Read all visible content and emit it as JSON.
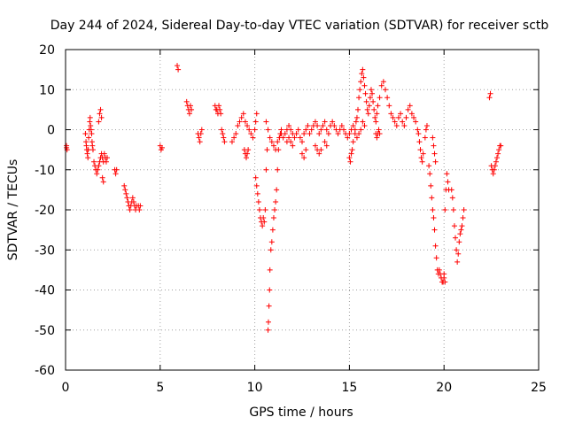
{
  "chart_data": {
    "type": "scatter",
    "title": "Day 244 of 2024, Sidereal Day-to-day VTEC variation (SDTVAR) for receiver sctb",
    "xlabel": "GPS time / hours",
    "ylabel": "SDTVAR / TECUs",
    "xlim": [
      0,
      25
    ],
    "ylim": [
      -60,
      20
    ],
    "grid": true,
    "marker": "plus",
    "color": "#ff0000",
    "x_ticks": [
      {
        "value": 0,
        "label": "0"
      },
      {
        "value": 5,
        "label": "5"
      },
      {
        "value": 10,
        "label": "10"
      },
      {
        "value": 15,
        "label": "15"
      },
      {
        "value": 20,
        "label": "20"
      },
      {
        "value": 25,
        "label": "25"
      }
    ],
    "y_ticks": [
      {
        "value": -60,
        "label": "-60"
      },
      {
        "value": -50,
        "label": "-50"
      },
      {
        "value": -40,
        "label": "-40"
      },
      {
        "value": -30,
        "label": "-30"
      },
      {
        "value": -20,
        "label": "-20"
      },
      {
        "value": -10,
        "label": "-10"
      },
      {
        "value": 0,
        "label": "0"
      },
      {
        "value": 10,
        "label": "10"
      },
      {
        "value": 20,
        "label": "20"
      }
    ],
    "series": [
      {
        "name": "SDTVAR",
        "x": [
          0.05,
          0.05,
          0.08,
          1.05,
          1.08,
          1.1,
          1.12,
          1.15,
          1.18,
          1.2,
          1.22,
          1.25,
          1.28,
          1.3,
          1.32,
          1.35,
          1.38,
          1.4,
          1.42,
          1.45,
          1.5,
          1.55,
          1.6,
          1.65,
          1.7,
          1.75,
          1.8,
          1.85,
          1.9,
          1.95,
          2.0,
          2.05,
          2.1,
          2.15,
          2.2,
          1.75,
          1.8,
          1.85,
          1.9,
          1.95,
          2.0,
          2.6,
          2.65,
          2.7,
          3.1,
          3.15,
          3.2,
          3.25,
          3.3,
          3.35,
          3.4,
          3.45,
          3.5,
          3.55,
          3.6,
          3.65,
          3.7,
          3.75,
          3.85,
          3.9,
          3.95,
          5.0,
          5.05,
          5.1,
          5.9,
          5.95,
          6.4,
          6.45,
          6.5,
          6.55,
          6.6,
          6.65,
          7.0,
          7.05,
          7.1,
          7.15,
          7.2,
          7.9,
          7.95,
          8.0,
          8.05,
          8.1,
          8.15,
          8.2,
          8.25,
          8.3,
          8.35,
          8.4,
          8.8,
          8.9,
          9.0,
          9.1,
          9.2,
          9.3,
          9.4,
          9.5,
          9.6,
          9.7,
          9.8,
          9.9,
          10.0,
          10.05,
          10.1,
          9.45,
          9.5,
          9.55,
          9.6,
          9.65,
          10.05,
          10.1,
          10.15,
          10.2,
          10.25,
          10.3,
          10.35,
          10.4,
          10.45,
          10.5,
          10.55,
          10.6,
          10.65,
          10.7,
          10.72,
          10.75,
          10.78,
          10.8,
          10.85,
          10.9,
          10.95,
          11.0,
          11.05,
          11.1,
          11.15,
          11.2,
          11.25,
          11.3,
          11.35,
          11.4,
          10.6,
          10.7,
          10.8,
          10.9,
          11.0,
          11.1,
          11.2,
          11.3,
          11.4,
          11.5,
          11.6,
          11.7,
          11.8,
          11.9,
          12.0,
          12.1,
          12.2,
          12.3,
          12.4,
          12.5,
          12.6,
          12.7,
          12.8,
          12.9,
          13.0,
          13.1,
          13.2,
          13.3,
          13.4,
          13.5,
          13.6,
          13.7,
          13.8,
          13.9,
          14.0,
          14.1,
          14.2,
          14.3,
          14.4,
          14.5,
          14.6,
          14.7,
          14.8,
          14.9,
          15.0,
          15.1,
          15.2,
          15.3,
          15.4,
          15.5,
          15.6,
          15.7,
          15.8,
          11.7,
          11.8,
          11.9,
          12.0,
          12.5,
          12.6,
          12.7,
          13.2,
          13.3,
          13.4,
          13.5,
          13.7,
          13.8,
          15.0,
          15.05,
          15.1,
          15.15,
          15.2,
          15.3,
          15.35,
          15.4,
          15.45,
          15.5,
          15.55,
          15.6,
          15.65,
          15.7,
          15.75,
          15.8,
          15.85,
          15.9,
          15.95,
          16.0,
          16.05,
          16.1,
          16.15,
          16.2,
          16.25,
          16.3,
          16.35,
          16.4,
          16.45,
          16.5,
          16.6,
          16.7,
          16.8,
          16.9,
          17.0,
          17.1,
          17.2,
          17.3,
          17.4,
          17.5,
          17.6,
          17.7,
          17.8,
          17.9,
          18.0,
          18.1,
          18.2,
          18.3,
          18.4,
          18.5,
          16.4,
          16.45,
          16.5,
          16.55,
          16.6,
          18.6,
          18.65,
          18.7,
          18.75,
          18.8,
          18.85,
          18.9,
          19.0,
          19.05,
          19.1,
          19.2,
          19.25,
          19.3,
          19.35,
          19.4,
          19.45,
          19.5,
          19.55,
          19.6,
          19.65,
          19.7,
          19.4,
          19.45,
          19.5,
          19.55,
          19.75,
          19.8,
          19.85,
          19.9,
          19.95,
          20.0,
          20.05,
          20.1,
          20.15,
          20.2,
          20.25,
          20.0,
          20.05,
          20.4,
          20.45,
          20.5,
          20.55,
          20.6,
          20.65,
          20.7,
          20.75,
          20.8,
          20.85,
          20.9,
          20.95,
          21.0,
          21.05,
          22.4,
          22.45,
          22.5,
          22.55,
          22.6,
          22.65,
          22.7,
          22.75,
          22.8,
          22.85,
          22.9,
          22.95,
          23.0
        ],
        "y": [
          -4,
          -4.5,
          -5,
          -1,
          -3,
          -4,
          -5,
          -6,
          -7,
          -5,
          -2,
          0,
          2,
          3,
          1,
          0,
          -1,
          -3,
          -4,
          -5,
          -8,
          -9,
          -10,
          -11,
          -10,
          -9,
          -8,
          -7,
          -6,
          -7,
          -8,
          -6,
          -7,
          -8,
          -7,
          2,
          4,
          5,
          3,
          -12,
          -13,
          -10,
          -11,
          -10,
          -14,
          -15,
          -16,
          -17,
          -18,
          -19,
          -20,
          -19,
          -18,
          -17,
          -18,
          -19,
          -20,
          -19,
          -19,
          -20,
          -19,
          -4,
          -5,
          -4.5,
          16,
          15,
          7,
          6,
          5,
          4,
          6,
          5,
          -1,
          -2,
          -3,
          -1,
          0,
          6,
          5,
          5,
          4,
          6,
          5,
          4,
          0,
          -1,
          -2,
          -3,
          -3,
          -2,
          -1,
          1,
          2,
          3,
          4,
          2,
          1,
          0,
          -1,
          -2,
          0,
          2,
          4,
          -5,
          -6,
          -7,
          -6,
          -5,
          -12,
          -14,
          -16,
          -18,
          -20,
          -22,
          -23,
          -24,
          -22,
          -23,
          -20,
          -10,
          -5,
          -50,
          -48,
          -44,
          -40,
          -35,
          -30,
          -28,
          -25,
          -22,
          -20,
          -18,
          -15,
          -10,
          -5,
          -2,
          -1,
          0,
          2,
          0,
          -2,
          -3,
          -4,
          -5,
          -3,
          -2,
          -1,
          -2,
          -1,
          0,
          1,
          0,
          -1,
          -2,
          -1,
          0,
          -2,
          -3,
          -1,
          0,
          1,
          -1,
          0,
          1,
          2,
          1,
          -1,
          0,
          1,
          2,
          0,
          -1,
          1,
          2,
          1,
          0,
          -1,
          0,
          1,
          0,
          -1,
          -2,
          -1,
          0,
          1,
          0,
          -2,
          -1,
          0,
          2,
          1,
          -3,
          -2,
          -3,
          -4,
          -6,
          -7,
          -5,
          -4,
          -5,
          -6,
          -5,
          -3,
          -4,
          -7,
          -8,
          -6,
          -5,
          -3,
          -1,
          2,
          3,
          5,
          8,
          10,
          12,
          14,
          15,
          13,
          11,
          9,
          7,
          5,
          4,
          6,
          8,
          10,
          9,
          7,
          5,
          3,
          2,
          4,
          6,
          8,
          11,
          12,
          10,
          8,
          6,
          4,
          3,
          2,
          1,
          3,
          4,
          2,
          1,
          3,
          5,
          6,
          4,
          3,
          2,
          -1,
          -2,
          -1,
          0,
          -1,
          0,
          -1,
          -3,
          -5,
          -7,
          -8,
          -6,
          -2,
          0,
          1,
          -9,
          -11,
          -14,
          -17,
          -20,
          -22,
          -25,
          -29,
          -32,
          -35,
          -36,
          -2,
          -4,
          -6,
          -8,
          -35,
          -36,
          -37,
          -38,
          -38,
          -36,
          -20,
          -15,
          -11,
          -13,
          -15,
          -37,
          -38,
          -15,
          -17,
          -20,
          -24,
          -27,
          -30,
          -33,
          -31,
          -28,
          -26,
          -25,
          -24,
          -22,
          -20,
          8,
          9,
          -9,
          -10,
          -11,
          -10,
          -9,
          -8,
          -7,
          -6,
          -5,
          -4,
          -4
        ]
      }
    ]
  }
}
